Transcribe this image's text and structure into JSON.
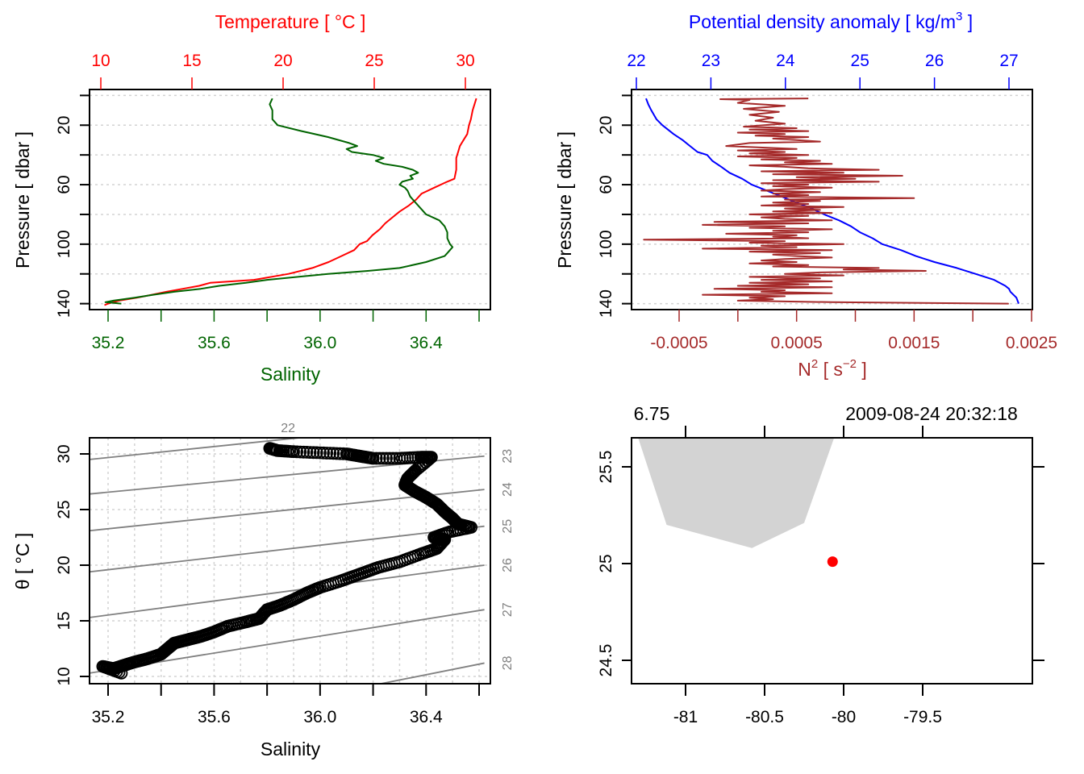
{
  "chart_data": [
    {
      "id": "profile-TS",
      "type": "line",
      "top_axis": {
        "label": "Temperature [ °C ]",
        "ticks": [
          10,
          15,
          20,
          25,
          30
        ],
        "range": [
          9.6,
          31.0
        ],
        "color": "#ff0000"
      },
      "bottom_axis": {
        "label": "Salinity",
        "ticks": [
          35.2,
          35.3,
          35.4,
          35.5,
          35.6,
          35.7,
          35.8,
          35.9,
          36.0,
          36.1,
          36.2,
          36.3,
          36.4,
          36.5,
          36.6
        ],
        "tick_labels": [
          "35.2",
          "35.6",
          "36.0",
          "36.4"
        ],
        "range": [
          35.13,
          36.62
        ],
        "color": "#006400"
      },
      "ylabel": "Pressure [ dbar ]",
      "y_ticks": [
        0,
        20,
        40,
        60,
        80,
        100,
        120,
        140
      ],
      "y_tick_labels": [
        "20",
        "60",
        "100",
        "140"
      ],
      "ylim": [
        144,
        -4
      ],
      "grid": true,
      "series": [
        {
          "name": "Temperature",
          "color": "#ff0000",
          "pressure": [
            2,
            6,
            10,
            16,
            20,
            26,
            30,
            34,
            38,
            42,
            46,
            50,
            56,
            58,
            62,
            66,
            70,
            74,
            78,
            82,
            86,
            90,
            94,
            98,
            100,
            104,
            108,
            112,
            116,
            120,
            124,
            126,
            128,
            130,
            132,
            134,
            136,
            138,
            140,
            141
          ],
          "values": [
            30.6,
            30.5,
            30.4,
            30.3,
            30.2,
            30.1,
            29.9,
            29.7,
            29.6,
            29.5,
            29.5,
            29.5,
            29.4,
            29.0,
            28.3,
            27.6,
            27.3,
            26.9,
            26.4,
            26.0,
            25.6,
            25.3,
            24.9,
            24.6,
            24.2,
            23.9,
            23.2,
            22.5,
            21.6,
            20.3,
            18.4,
            16.0,
            15.4,
            14.5,
            13.6,
            12.8,
            12.0,
            11.0,
            10.4,
            10.2
          ]
        },
        {
          "name": "Salinity",
          "color": "#006400",
          "pressure": [
            2,
            6,
            10,
            16,
            20,
            24,
            28,
            32,
            34,
            36,
            38,
            40,
            42,
            44,
            46,
            48,
            50,
            52,
            54,
            56,
            58,
            60,
            62,
            64,
            68,
            72,
            76,
            80,
            84,
            88,
            92,
            96,
            100,
            102,
            104,
            106,
            108,
            112,
            116,
            118,
            120,
            124,
            126,
            128,
            130,
            132,
            134,
            136,
            138,
            139,
            140
          ],
          "values": [
            35.82,
            35.81,
            35.82,
            35.82,
            35.84,
            35.93,
            36.03,
            36.11,
            36.14,
            36.1,
            36.12,
            36.2,
            36.24,
            36.21,
            36.24,
            36.31,
            36.35,
            36.37,
            36.34,
            36.35,
            36.31,
            36.3,
            36.32,
            36.33,
            36.34,
            36.36,
            36.38,
            36.4,
            36.45,
            36.47,
            36.48,
            36.48,
            36.49,
            36.5,
            36.49,
            36.48,
            36.47,
            36.4,
            36.3,
            36.18,
            36.03,
            35.8,
            35.72,
            35.62,
            35.55,
            35.45,
            35.37,
            35.3,
            35.22,
            35.19,
            35.25
          ]
        }
      ]
    },
    {
      "id": "profile-density-N2",
      "type": "line",
      "top_axis": {
        "label": "Potential density anomaly [ kg/m",
        "label_sup": "3",
        "label_end": " ]",
        "ticks": [
          22,
          23,
          24,
          25,
          26,
          27
        ],
        "range": [
          21.94,
          27.32
        ],
        "color": "#0000ff"
      },
      "bottom_axis": {
        "label": "N",
        "label_sup": "2",
        "label_mid": " [ s",
        "label_sup2": "−2",
        "label_end": " ]",
        "ticks": [
          -0.0005,
          0,
          0.0005,
          0.001,
          0.0015,
          0.002,
          0.0025
        ],
        "tick_labels": [
          "-0.0005",
          "0.0005",
          "0.0015",
          "0.0025"
        ],
        "range": [
          -0.00093,
          0.0025
        ],
        "color": "#a52a2a"
      },
      "ylabel": "Pressure [ dbar ]",
      "y_ticks": [
        0,
        20,
        40,
        60,
        80,
        100,
        120,
        140
      ],
      "y_tick_labels": [
        "20",
        "60",
        "100",
        "140"
      ],
      "ylim": [
        144,
        -4
      ],
      "grid": true,
      "series": [
        {
          "name": "Potential density anomaly",
          "color": "#0000ff",
          "pressure": [
            2,
            6,
            10,
            16,
            20,
            26,
            30,
            34,
            38,
            40,
            44,
            48,
            52,
            56,
            60,
            64,
            68,
            72,
            76,
            80,
            84,
            88,
            92,
            96,
            100,
            104,
            108,
            112,
            116,
            120,
            124,
            128,
            130,
            132,
            136,
            140
          ],
          "values": [
            22.13,
            22.16,
            22.2,
            22.27,
            22.35,
            22.5,
            22.62,
            22.72,
            22.82,
            22.95,
            23.02,
            23.14,
            23.25,
            23.42,
            23.55,
            23.75,
            23.95,
            24.15,
            24.35,
            24.52,
            24.72,
            24.88,
            25.0,
            25.17,
            25.3,
            25.55,
            25.75,
            26.0,
            26.3,
            26.55,
            26.8,
            26.95,
            27.0,
            27.02,
            27.1,
            27.13
          ]
        },
        {
          "name": "N2",
          "color": "#a52a2a",
          "pressure": [
            2,
            2.5,
            3,
            5,
            7,
            9,
            11,
            13,
            15,
            17,
            19,
            21,
            22,
            23,
            24,
            25,
            26,
            27,
            28,
            29,
            31,
            32,
            34,
            36,
            37,
            38,
            39,
            40,
            41,
            42,
            43,
            44,
            45,
            46,
            47,
            48,
            49,
            50,
            51,
            52,
            53,
            54,
            55,
            56,
            57,
            58,
            59,
            60,
            61,
            62,
            63,
            64,
            65,
            66,
            67,
            68,
            69,
            70,
            71,
            72,
            73,
            74,
            75,
            76,
            77,
            78,
            79,
            80,
            81,
            82,
            83,
            84,
            85,
            86,
            87,
            88,
            89,
            90,
            91,
            92,
            93,
            94,
            95,
            96,
            97,
            98,
            99,
            100,
            101,
            102,
            103,
            104,
            105,
            106,
            107,
            108,
            109,
            110,
            111,
            112,
            113,
            114,
            115,
            116,
            117,
            118,
            119,
            120,
            121,
            122,
            123,
            124,
            125,
            126,
            127,
            128,
            129,
            130,
            131,
            132,
            133,
            134,
            135,
            136,
            137,
            138,
            139,
            140,
            140.5
          ],
          "values": [
            0.0006,
            -0.00015,
            0.0001,
            0.0,
            0.0004,
            5e-05,
            0.00035,
            0.0001,
            0.0003,
            0.00015,
            0.0004,
            5e-05,
            0.0005,
            0.0001,
            0.0006,
            0.0,
            0.0004,
            0.00015,
            0.0006,
            0.0003,
            0.0007,
            0.0001,
            -0.0001,
            0.0005,
            0.0,
            0.0004,
            0.0001,
            0.0006,
            0.0,
            0.0005,
            0.0002,
            0.0007,
            0.0004,
            0.0008,
            0.0001,
            0.0004,
            0.0006,
            0.0012,
            0.0002,
            0.0009,
            0.0003,
            0.0014,
            0.0005,
            0.001,
            0.0003,
            0.0012,
            0.0002,
            0.0006,
            0.0003,
            0.0008,
            0.0004,
            0.0002,
            0.0007,
            0.0003,
            0.0006,
            0.0002,
            0.0015,
            0.0004,
            0.0007,
            0.0003,
            0.0006,
            0.0002,
            0.0009,
            0.0004,
            0.0007,
            0.0003,
            0.0008,
            0.0001,
            0.0006,
            0.0002,
            0.0004,
            0.0008,
            -0.0002,
            0.0006,
            -0.0003,
            0.0004,
            0.0001,
            0.0008,
            0.0003,
            0.0006,
            -0.0001,
            0.0005,
            0.0003,
            0.0006,
            -0.0008,
            0.0004,
            0.0001,
            0.0009,
            0.0002,
            0.0005,
            -0.0003,
            0.0008,
            0.0001,
            0.0007,
            0.0003,
            0.0005,
            0.0008,
            0.0004,
            0.0002,
            0.0005,
            0.0001,
            0.0006,
            0.0003,
            0.0012,
            0.0009,
            0.0016,
            0.0007,
            0.0004,
            0.0009,
            0.0001,
            0.0007,
            0.0002,
            0.0008,
            0.0001,
            0.0006,
            0.0,
            0.0008,
            -0.0002,
            0.0004,
            0.0002,
            0.0008,
            -0.0003,
            0.0004,
            0.0001,
            0.0003,
            0.0,
            0.0008,
            0.0023,
            0.0023
          ]
        }
      ]
    },
    {
      "id": "TS-diagram",
      "type": "scatter",
      "xlabel": "Salinity",
      "ylabel": "θ [ °C ]",
      "x_ticks": [
        35.2,
        35.3,
        35.4,
        35.5,
        35.6,
        35.7,
        35.8,
        35.9,
        36.0,
        36.1,
        36.2,
        36.3,
        36.4,
        36.5,
        36.6
      ],
      "x_tick_labels": [
        "35.2",
        "35.6",
        "36.0",
        "36.4"
      ],
      "xlim": [
        35.13,
        36.62
      ],
      "y_ticks": [
        10,
        15,
        20,
        25,
        30
      ],
      "y_tick_labels": [
        "10",
        "15",
        "20",
        "25",
        "30"
      ],
      "ylim": [
        9.3,
        31.5
      ],
      "grid": true,
      "isopycnals": {
        "color": "#808080",
        "labels": [
          "22",
          "23",
          "24",
          "25",
          "26",
          "27",
          "28"
        ],
        "lines": [
          {
            "label": "22",
            "left": [
              35.13,
              29.5
            ],
            "right": [
              35.94,
              31.5
            ]
          },
          {
            "label": "23",
            "left": [
              35.13,
              26.4
            ],
            "right": [
              36.62,
              29.8
            ]
          },
          {
            "label": "24",
            "left": [
              35.13,
              23.1
            ],
            "right": [
              36.62,
              26.8
            ]
          },
          {
            "label": "25",
            "left": [
              35.13,
              19.4
            ],
            "right": [
              36.62,
              23.5
            ]
          },
          {
            "label": "26",
            "left": [
              35.13,
              15.3
            ],
            "right": [
              36.62,
              20.0
            ]
          },
          {
            "label": "27",
            "left": [
              35.13,
              10.3
            ],
            "right": [
              36.62,
              16.0
            ]
          },
          {
            "label": "28",
            "left": [
              36.22,
              9.3
            ],
            "right": [
              36.62,
              11.2
            ]
          }
        ]
      },
      "points": {
        "S": [
          35.81,
          35.84,
          35.9,
          36.0,
          36.1,
          36.15,
          36.2,
          36.3,
          36.38,
          36.42,
          36.36,
          36.33,
          36.32,
          36.36,
          36.4,
          36.44,
          36.47,
          36.5,
          36.52,
          36.57,
          36.49,
          36.43,
          36.47,
          36.44,
          36.38,
          36.3,
          36.22,
          36.15,
          36.08,
          36.0,
          35.95,
          35.9,
          35.85,
          35.8,
          35.77,
          35.72,
          35.65,
          35.6,
          35.55,
          35.5,
          35.45,
          35.43,
          35.4,
          35.35,
          35.3,
          35.26,
          35.22,
          35.18,
          35.25
        ],
        "theta": [
          30.5,
          30.3,
          30.2,
          30.1,
          30.0,
          29.8,
          29.6,
          29.6,
          29.7,
          29.7,
          28.5,
          27.8,
          27.2,
          26.6,
          26.1,
          25.5,
          24.8,
          24.2,
          23.7,
          23.4,
          23.0,
          22.5,
          22.3,
          21.5,
          21.0,
          20.3,
          19.8,
          19.2,
          18.6,
          18.0,
          17.5,
          16.9,
          16.4,
          16.0,
          15.2,
          14.9,
          14.5,
          14.0,
          13.6,
          13.3,
          13.0,
          12.6,
          12.0,
          11.6,
          11.3,
          11.0,
          10.7,
          10.9,
          10.3
        ]
      }
    },
    {
      "id": "station-map",
      "type": "scatter",
      "x_ticks": [
        -81,
        -80.5,
        -80,
        -79.5
      ],
      "x_tick_labels": [
        "-81",
        "-80.5",
        "-80",
        "-79.5"
      ],
      "xlim": [
        -81.34,
        -78.8
      ],
      "y_ticks": [
        24.5,
        25,
        25.5
      ],
      "y_tick_labels": [
        "24.5",
        "25",
        "25.5"
      ],
      "ylim": [
        24.36,
        25.65
      ],
      "top_labels": {
        "left": "6.75",
        "right": "2009-08-24 20:32:18"
      },
      "land_polygon": {
        "color": "#d3d3d3",
        "lon": [
          -81.3,
          -81.12,
          -80.58,
          -80.25,
          -80.06
        ],
        "lat": [
          25.65,
          25.2,
          25.08,
          25.21,
          25.65
        ]
      },
      "station": {
        "lon": -80.07,
        "lat": 25.01,
        "color": "#ff0000"
      }
    }
  ]
}
